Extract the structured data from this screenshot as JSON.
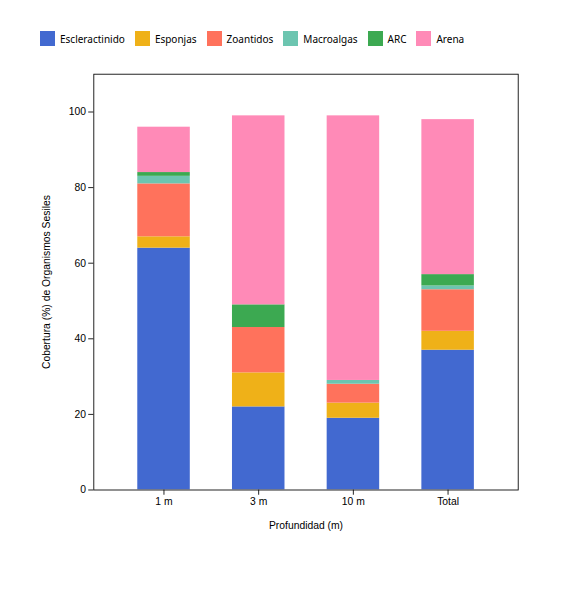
{
  "chart_data": {
    "type": "bar",
    "stacked": true,
    "categories": [
      "1 m",
      "3 m",
      "10 m",
      "Total"
    ],
    "series": [
      {
        "name": "Escleractinido",
        "values": [
          64,
          22,
          19,
          37
        ]
      },
      {
        "name": "Esponjas",
        "values": [
          3,
          9,
          4,
          5
        ]
      },
      {
        "name": "Zoantidos",
        "values": [
          14,
          12,
          5,
          11
        ]
      },
      {
        "name": "Macroalgas",
        "values": [
          2,
          0,
          1,
          1
        ]
      },
      {
        "name": "ARC",
        "values": [
          1,
          6,
          0,
          3
        ]
      },
      {
        "name": "Arena",
        "values": [
          12,
          50,
          70,
          41
        ]
      }
    ],
    "xlabel": "Profundidad (m)",
    "ylabel": "Cobertura (%) de Organismos Sesiles",
    "ylim": [
      0,
      110
    ],
    "yticks": [
      0,
      20,
      40,
      60,
      80,
      100
    ],
    "grid": false,
    "legend": "top"
  }
}
